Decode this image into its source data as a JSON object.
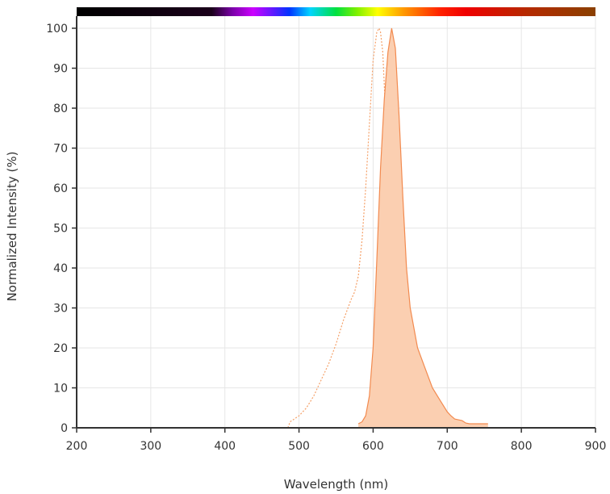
{
  "chart_data": {
    "type": "area",
    "xlabel": "Wavelength (nm)",
    "ylabel": "Normalized Intensity (%)",
    "xlim": [
      200,
      900
    ],
    "ylim": [
      0,
      100
    ],
    "x_ticks": [
      "200",
      "300",
      "400",
      "500",
      "600",
      "700",
      "800",
      "900"
    ],
    "y_ticks": [
      "0",
      "10",
      "20",
      "30",
      "40",
      "50",
      "60",
      "70",
      "80",
      "90",
      "100"
    ],
    "grid": true,
    "spectrum_bar": true,
    "series": [
      {
        "style": "dotted-line",
        "color": "#f5a068",
        "x": [
          485,
          488,
          492,
          500,
          510,
          520,
          530,
          540,
          550,
          560,
          570,
          575,
          580,
          585,
          590,
          595,
          600,
          605,
          608,
          610,
          613,
          616,
          620,
          625,
          630,
          635,
          640,
          645
        ],
        "y": [
          0,
          1.5,
          2,
          3,
          5,
          8,
          12,
          16,
          21,
          27,
          32,
          34,
          38,
          47,
          60,
          76,
          92,
          99,
          100,
          99,
          94,
          82,
          62,
          40,
          24,
          12,
          5,
          0
        ]
      },
      {
        "style": "filled-area",
        "color": "#f28a4f",
        "fill": "#fbcfb1",
        "x": [
          580,
          585,
          590,
          595,
          600,
          605,
          610,
          615,
          620,
          625,
          630,
          635,
          640,
          645,
          650,
          660,
          670,
          680,
          690,
          700,
          705,
          710,
          715,
          720,
          725,
          730,
          740,
          755
        ],
        "y": [
          1,
          1.5,
          3,
          8,
          20,
          42,
          65,
          82,
          94,
          100,
          95,
          78,
          58,
          40,
          30,
          20,
          15,
          10,
          7,
          4,
          3,
          2.2,
          2,
          1.8,
          1.2,
          1,
          1,
          1
        ]
      }
    ]
  }
}
